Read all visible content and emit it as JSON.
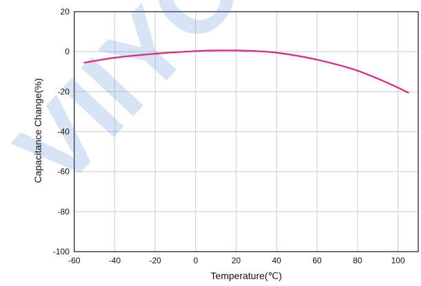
{
  "watermark": "VIIYONG",
  "chart_data": {
    "type": "line",
    "xlabel": "Temperature(℃)",
    "ylabel": "Capacitance Change(%)",
    "xlim": [
      -60,
      110
    ],
    "ylim": [
      -100,
      20
    ],
    "x_ticks": [
      -60,
      -40,
      -20,
      0,
      20,
      40,
      60,
      80,
      100
    ],
    "y_ticks": [
      20,
      0,
      -20,
      -40,
      -60,
      -80,
      -100
    ],
    "grid": true,
    "series": [
      {
        "color": "#e0267a",
        "x": [
          -55,
          -40,
          -20,
          0,
          10,
          20,
          30,
          40,
          50,
          60,
          70,
          80,
          90,
          100,
          105
        ],
        "y": [
          -5.5,
          -3,
          -1,
          0.3,
          0.6,
          0.6,
          0.3,
          -0.5,
          -2,
          -4,
          -6.5,
          -9.5,
          -13.5,
          -18,
          -20.5
        ]
      }
    ]
  }
}
